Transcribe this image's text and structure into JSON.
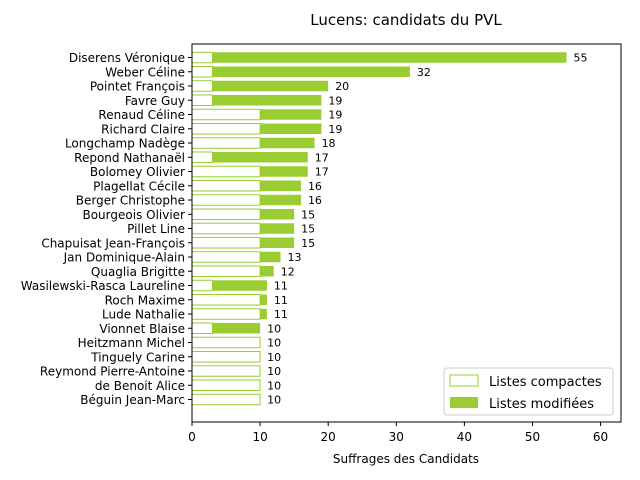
{
  "chart_data": {
    "type": "bar",
    "orientation": "horizontal",
    "title": "Lucens: candidats du PVL",
    "xlabel": "Suffrages des Candidats",
    "ylabel": "",
    "xlim": [
      0,
      63
    ],
    "xticks": [
      0,
      10,
      20,
      30,
      40,
      50,
      60
    ],
    "grid": false,
    "legend_position": "lower right",
    "colors": {
      "modified": "#9acd32",
      "compact_edge": "#9acd32",
      "compact_fill": "#ffffff"
    },
    "categories": [
      "Diserens Véronique",
      "Weber Céline",
      "Pointet François",
      "Favre Guy",
      "Renaud Céline",
      "Richard Claire",
      "Longchamp Nadège",
      "Repond Nathanaël",
      "Bolomey Olivier",
      "Plagellat Cécile",
      "Berger Christophe",
      "Bourgeois Olivier",
      "Pillet Line",
      "Chapuisat Jean-François",
      "Jan Dominique-Alain",
      "Quaglia Brigitte",
      "Wasilewski-Rasca Laureline",
      "Roch Maxime",
      "Lude Nathalie",
      "Vionnet Blaise",
      "Heitzmann Michel",
      "Tinguely Carine",
      "Reymond Pierre-Antoine",
      "de Benoit Alice",
      "Béguin Jean-Marc"
    ],
    "series": [
      {
        "name": "Listes compactes",
        "values": [
          3,
          3,
          3,
          3,
          10,
          10,
          10,
          3,
          10,
          10,
          10,
          10,
          10,
          10,
          10,
          10,
          3,
          10,
          10,
          3,
          10,
          10,
          10,
          10,
          10
        ]
      },
      {
        "name": "Listes modifiées",
        "values": [
          52,
          29,
          17,
          16,
          9,
          9,
          8,
          14,
          7,
          6,
          6,
          5,
          5,
          5,
          3,
          2,
          8,
          1,
          1,
          7,
          0,
          0,
          0,
          0,
          0
        ]
      }
    ],
    "totals": [
      55,
      32,
      20,
      19,
      19,
      19,
      18,
      17,
      17,
      16,
      16,
      15,
      15,
      15,
      13,
      12,
      11,
      11,
      11,
      10,
      10,
      10,
      10,
      10,
      10
    ]
  }
}
